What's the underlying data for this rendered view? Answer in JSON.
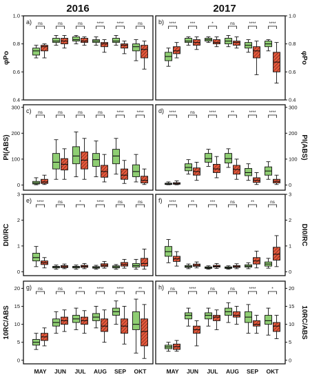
{
  "figure": {
    "years": [
      "2016",
      "2017"
    ],
    "months": [
      "MAY",
      "JUN",
      "JUL",
      "AUG",
      "SEP",
      "OKT"
    ],
    "colors": {
      "control": "#8fce73",
      "treated": "#e4573b",
      "frame": "#111111"
    },
    "rows": [
      {
        "ylabel_left": "φPo",
        "ylabel_right": "φPo",
        "ylim": [
          0.4,
          1.0
        ],
        "ticks": [
          "0.4",
          "0.6",
          "0.8",
          "1.0"
        ],
        "tick_values": [
          0.4,
          0.6,
          0.8,
          1.0
        ],
        "tag_left": "a)",
        "tag_right": "b)",
        "sig_left": [
          "ns",
          "ns",
          "ns",
          "****",
          "****",
          "ns"
        ],
        "sig_right": [
          "****",
          "***",
          "*",
          "ns",
          "****",
          "****"
        ],
        "boxes_left": [
          [
            [
              0.7,
              0.72,
              0.75,
              0.77,
              0.79
            ],
            [
              0.7,
              0.75,
              0.78,
              0.79,
              0.8
            ]
          ],
          [
            [
              0.79,
              0.81,
              0.82,
              0.84,
              0.86
            ],
            [
              0.77,
              0.8,
              0.82,
              0.84,
              0.86
            ]
          ],
          [
            [
              0.8,
              0.82,
              0.83,
              0.85,
              0.86
            ],
            [
              0.79,
              0.81,
              0.82,
              0.84,
              0.85
            ]
          ],
          [
            [
              0.79,
              0.81,
              0.82,
              0.83,
              0.85
            ],
            [
              0.74,
              0.78,
              0.8,
              0.81,
              0.83
            ]
          ],
          [
            [
              0.79,
              0.81,
              0.82,
              0.84,
              0.86
            ],
            [
              0.73,
              0.77,
              0.79,
              0.8,
              0.82
            ]
          ],
          [
            [
              0.68,
              0.75,
              0.78,
              0.8,
              0.83
            ],
            [
              0.62,
              0.7,
              0.76,
              0.79,
              0.82
            ]
          ]
        ],
        "boxes_right": [
          [
            [
              0.64,
              0.68,
              0.71,
              0.74,
              0.77
            ],
            [
              0.7,
              0.73,
              0.75,
              0.78,
              0.81
            ]
          ],
          [
            [
              0.79,
              0.81,
              0.82,
              0.84,
              0.85
            ],
            [
              0.76,
              0.79,
              0.81,
              0.83,
              0.85
            ]
          ],
          [
            [
              0.81,
              0.82,
              0.83,
              0.84,
              0.85
            ],
            [
              0.78,
              0.8,
              0.81,
              0.83,
              0.85
            ]
          ],
          [
            [
              0.78,
              0.8,
              0.82,
              0.84,
              0.86
            ],
            [
              0.77,
              0.79,
              0.81,
              0.82,
              0.85
            ]
          ],
          [
            [
              0.74,
              0.77,
              0.79,
              0.81,
              0.83
            ],
            [
              0.58,
              0.7,
              0.75,
              0.78,
              0.82
            ]
          ],
          [
            [
              0.75,
              0.78,
              0.8,
              0.82,
              0.83
            ],
            [
              0.52,
              0.6,
              0.67,
              0.74,
              0.81
            ]
          ]
        ]
      },
      {
        "ylabel_left": "PI(ABS)",
        "ylabel_right": "PI(ABS)",
        "ylim": [
          -20,
          310
        ],
        "ticks": [
          "0",
          "100",
          "200",
          "300"
        ],
        "tick_values": [
          0,
          100,
          200,
          300
        ],
        "tag_left": "c)",
        "tag_right": "d)",
        "sig_left": [
          "ns",
          "ns",
          "ns",
          "ns",
          "****",
          "****"
        ],
        "sig_right": [
          "****",
          "ns",
          "****",
          "**",
          "****",
          "****"
        ],
        "boxes_left": [
          [
            [
              1,
              4,
              8,
              14,
              28
            ],
            [
              2,
              6,
              12,
              22,
              38
            ]
          ],
          [
            [
              22,
              62,
              88,
              122,
              175
            ],
            [
              22,
              58,
              80,
              102,
              140
            ]
          ],
          [
            [
              32,
              82,
              112,
              148,
              205
            ],
            [
              22,
              62,
              96,
              128,
              180
            ]
          ],
          [
            [
              32,
              72,
              98,
              122,
              170
            ],
            [
              12,
              30,
              52,
              76,
              118
            ]
          ],
          [
            [
              42,
              82,
              112,
              138,
              180
            ],
            [
              6,
              22,
              38,
              62,
              95
            ]
          ],
          [
            [
              12,
              32,
              52,
              78,
              118
            ],
            [
              2,
              8,
              18,
              34,
              62
            ]
          ]
        ],
        "boxes_right": [
          [
            [
              1,
              2,
              4,
              7,
              12
            ],
            [
              1,
              3,
              6,
              9,
              16
            ]
          ],
          [
            [
              42,
              55,
              68,
              82,
              98
            ],
            [
              18,
              38,
              52,
              66,
              88
            ]
          ],
          [
            [
              72,
              88,
              102,
              122,
              138
            ],
            [
              28,
              48,
              62,
              80,
              110
            ]
          ],
          [
            [
              68,
              85,
              102,
              122,
              140
            ],
            [
              22,
              42,
              60,
              76,
              100
            ]
          ],
          [
            [
              18,
              36,
              48,
              64,
              82
            ],
            [
              2,
              10,
              18,
              28,
              48
            ]
          ],
          [
            [
              22,
              38,
              54,
              70,
              90
            ],
            [
              2,
              8,
              14,
              22,
              38
            ]
          ]
        ]
      },
      {
        "ylabel_left": "DI0/RC",
        "ylabel_right": "DI0/RC",
        "ylim": [
          -0.15,
          3.0
        ],
        "ticks": [
          "0",
          "1",
          "2",
          "3"
        ],
        "tick_values": [
          0,
          1,
          2,
          3
        ],
        "tag_left": "e)",
        "tag_right": "f)",
        "sig_left": [
          "****",
          "ns",
          "*",
          "****",
          "ns",
          "ns"
        ],
        "sig_right": [
          "****",
          "**",
          "***",
          "ns",
          "**",
          "ns"
        ],
        "boxes_left": [
          [
            [
              0.2,
              0.42,
              0.55,
              0.72,
              0.98
            ],
            [
              0.15,
              0.28,
              0.35,
              0.42,
              0.55
            ]
          ],
          [
            [
              0.1,
              0.15,
              0.18,
              0.21,
              0.26
            ],
            [
              0.12,
              0.16,
              0.2,
              0.24,
              0.3
            ]
          ],
          [
            [
              0.1,
              0.15,
              0.18,
              0.21,
              0.26
            ],
            [
              0.12,
              0.17,
              0.21,
              0.25,
              0.32
            ]
          ],
          [
            [
              0.1,
              0.14,
              0.17,
              0.2,
              0.25
            ],
            [
              0.14,
              0.2,
              0.25,
              0.31,
              0.4
            ]
          ],
          [
            [
              0.1,
              0.15,
              0.19,
              0.23,
              0.28
            ],
            [
              0.14,
              0.22,
              0.28,
              0.36,
              0.48
            ]
          ],
          [
            [
              0.1,
              0.18,
              0.24,
              0.32,
              0.48
            ],
            [
              0.1,
              0.22,
              0.32,
              0.52,
              0.88
            ]
          ]
        ],
        "boxes_right": [
          [
            [
              0.35,
              0.6,
              0.78,
              0.98,
              1.25
            ],
            [
              0.22,
              0.4,
              0.5,
              0.6,
              0.78
            ]
          ],
          [
            [
              0.12,
              0.17,
              0.2,
              0.24,
              0.3
            ],
            [
              0.15,
              0.21,
              0.25,
              0.3,
              0.38
            ]
          ],
          [
            [
              0.1,
              0.13,
              0.16,
              0.19,
              0.23
            ],
            [
              0.13,
              0.18,
              0.21,
              0.25,
              0.32
            ]
          ],
          [
            [
              0.1,
              0.13,
              0.16,
              0.19,
              0.23
            ],
            [
              0.12,
              0.17,
              0.2,
              0.24,
              0.31
            ]
          ],
          [
            [
              0.12,
              0.18,
              0.22,
              0.27,
              0.35
            ],
            [
              0.15,
              0.3,
              0.42,
              0.55,
              0.8
            ]
          ],
          [
            [
              0.14,
              0.22,
              0.3,
              0.38,
              0.52
            ],
            [
              0.2,
              0.45,
              0.68,
              0.95,
              1.4
            ]
          ]
        ]
      },
      {
        "ylabel_left": "10RC/ABS",
        "ylabel_right": "10RC/ABS",
        "ylim": [
          -1,
          22
        ],
        "ticks": [
          "0",
          "5",
          "10",
          "15",
          "20"
        ],
        "tick_values": [
          0,
          5,
          10,
          15,
          20
        ],
        "tag_left": "g)",
        "tag_right": "h)",
        "sig_left": [
          "ns",
          "ns",
          "**",
          "****",
          "****",
          "**"
        ],
        "sig_right": [
          "ns",
          "****",
          "ns",
          "ns",
          "****",
          "*"
        ],
        "boxes_left": [
          [
            [
              3.0,
              4.2,
              5.0,
              5.8,
              7.5
            ],
            [
              4.0,
              5.5,
              6.5,
              7.5,
              9.0
            ]
          ],
          [
            [
              7.5,
              9.5,
              10.5,
              11.5,
              13.5
            ],
            [
              8.0,
              10.0,
              11.0,
              12.0,
              14.0
            ]
          ],
          [
            [
              8.5,
              10.5,
              11.5,
              12.5,
              14.5
            ],
            [
              7.5,
              10.0,
              11.0,
              12.0,
              13.8
            ]
          ],
          [
            [
              9.0,
              11.0,
              12.0,
              13.0,
              15.0
            ],
            [
              5.0,
              8.0,
              9.5,
              11.5,
              14.0
            ]
          ],
          [
            [
              10.0,
              12.5,
              13.5,
              14.5,
              16.5
            ],
            [
              4.5,
              7.5,
              9.5,
              11.5,
              15.0
            ]
          ],
          [
            [
              2.0,
              8.5,
              10.0,
              13.5,
              17.0
            ],
            [
              0.5,
              4.0,
              8.0,
              11.5,
              15.5
            ]
          ]
        ],
        "boxes_right": [
          [
            [
              2.5,
              3.2,
              3.7,
              4.2,
              5.0
            ],
            [
              2.5,
              3.0,
              3.8,
              4.5,
              5.5
            ]
          ],
          [
            [
              9.5,
              11.5,
              12.5,
              13.2,
              14.5
            ],
            [
              4.0,
              7.5,
              8.5,
              9.5,
              11.0
            ]
          ],
          [
            [
              9.5,
              11.5,
              12.5,
              13.2,
              14.5
            ],
            [
              8.5,
              11.0,
              12.0,
              12.5,
              14.0
            ]
          ],
          [
            [
              10.5,
              12.5,
              13.5,
              14.5,
              16.0
            ],
            [
              10.0,
              12.0,
              12.5,
              13.5,
              15.0
            ]
          ],
          [
            [
              7.5,
              10.5,
              12.0,
              13.5,
              15.5
            ],
            [
              7.5,
              9.5,
              10.0,
              11.0,
              12.5
            ]
          ],
          [
            [
              7.0,
              10.0,
              11.0,
              12.5,
              14.5
            ],
            [
              6.0,
              8.0,
              9.5,
              10.5,
              12.5
            ]
          ]
        ]
      }
    ]
  }
}
